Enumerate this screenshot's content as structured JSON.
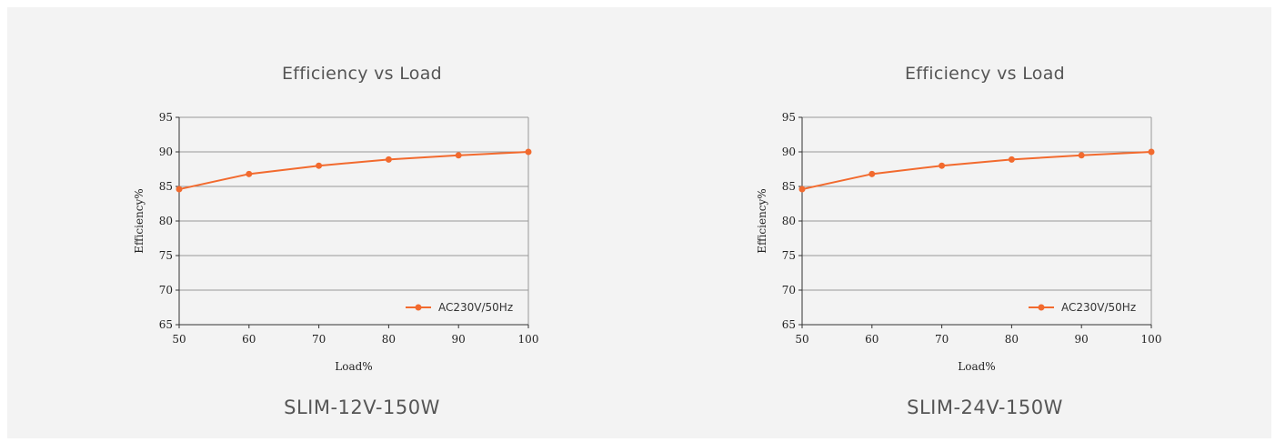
{
  "colors": {
    "background": "#f3f3f3",
    "series": "#f26a2e",
    "grid": "#9a9a9a",
    "axis": "#333333"
  },
  "chart_data": [
    {
      "type": "line",
      "title": "Efficiency vs Load",
      "caption": "SLIM-12V-150W",
      "xlabel": "Load%",
      "ylabel": "Efficiency%",
      "xlim": [
        50,
        100
      ],
      "ylim": [
        65,
        95
      ],
      "xticks": [
        50,
        60,
        70,
        80,
        90,
        100
      ],
      "yticks": [
        65,
        70,
        75,
        80,
        85,
        90,
        95
      ],
      "grid": true,
      "legend_position": "bottom-right",
      "series": [
        {
          "name": "AC230V/50Hz",
          "color": "#f26a2e",
          "x": [
            50,
            60,
            70,
            80,
            90,
            100
          ],
          "y": [
            84.6,
            86.8,
            88.0,
            88.9,
            89.5,
            90.0
          ]
        }
      ]
    },
    {
      "type": "line",
      "title": "Efficiency vs Load",
      "caption": "SLIM-24V-150W",
      "xlabel": "Load%",
      "ylabel": "Efficiency%",
      "xlim": [
        50,
        100
      ],
      "ylim": [
        65,
        95
      ],
      "xticks": [
        50,
        60,
        70,
        80,
        90,
        100
      ],
      "yticks": [
        65,
        70,
        75,
        80,
        85,
        90,
        95
      ],
      "grid": true,
      "legend_position": "bottom-right",
      "series": [
        {
          "name": "AC230V/50Hz",
          "color": "#f26a2e",
          "x": [
            50,
            60,
            70,
            80,
            90,
            100
          ],
          "y": [
            84.6,
            86.8,
            88.0,
            88.9,
            89.5,
            90.0
          ]
        }
      ]
    }
  ]
}
